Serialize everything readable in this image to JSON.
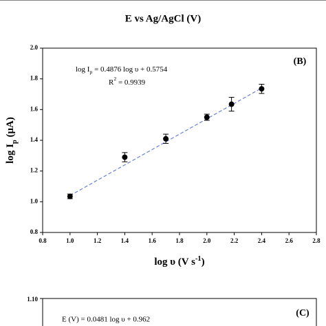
{
  "chart_data": [
    {
      "type": "axis-fragment",
      "xlabel": "E vs Ag/AgCl (V)"
    },
    {
      "type": "scatter",
      "label": "(B)",
      "equation": [
        "log I",
        "p",
        " = 0.4876 log υ + 0.5754"
      ],
      "r_squared": [
        "R",
        "2",
        " = 0.9939"
      ],
      "xlabel": [
        "log υ (V s",
        "-1",
        ")"
      ],
      "ylabel": [
        "log I",
        "p",
        " (μA)"
      ],
      "x": [
        1.0,
        1.4,
        1.7,
        2.0,
        2.18,
        2.4
      ],
      "values": [
        1.035,
        1.29,
        1.41,
        1.55,
        1.635,
        1.735
      ],
      "errors": [
        0.015,
        0.03,
        0.03,
        0.02,
        0.045,
        0.03
      ],
      "color": "#000000",
      "fit_line": {
        "x": [
          1.0,
          2.4
        ],
        "y": [
          1.04,
          1.74
        ],
        "color": "#6b7fd7"
      },
      "xlim": [
        0.8,
        2.8
      ],
      "xticks": [
        0.8,
        {
          "value": 1,
          "label": "1.0"
        },
        1.2,
        1.4,
        1.6,
        1.8,
        {
          "value": 2,
          "label": "2.0"
        },
        2.2,
        2.4,
        2.6,
        2.8
      ],
      "ylim": [
        0.8,
        2.0
      ],
      "yticks": [
        0.8,
        {
          "value": 1,
          "label": "1.0"
        },
        1.2,
        1.4,
        1.6,
        1.8,
        {
          "value": 2,
          "label": "2.0"
        }
      ]
    },
    {
      "type": "line-fragment",
      "label": "(C)",
      "equation": "E (V) = 0.0481 log υ + 0.962",
      "yticks": [
        {
          "value": 1.1,
          "label": "1.10"
        }
      ]
    }
  ]
}
